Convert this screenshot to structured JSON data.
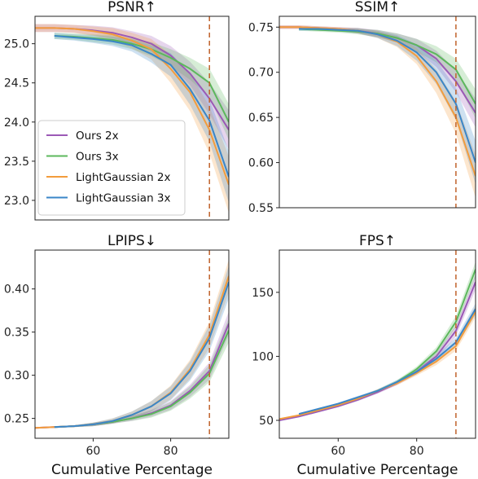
{
  "chart_data": [
    {
      "type": "line",
      "title": "PSNR↑",
      "xlabel": "",
      "ylabel": "",
      "xlim": [
        45,
        95
      ],
      "ylim": [
        22.75,
        25.35
      ],
      "yticks": [
        25.0,
        24.5,
        24.0,
        23.5,
        23.0
      ],
      "ytick_labels": [
        "25.0",
        "24.5",
        "24.0",
        "23.5",
        "23.0"
      ],
      "xticks": [],
      "vline": 90,
      "grid": false,
      "legend": "lower-left",
      "series": [
        {
          "name": "Ours 2x",
          "color": "#9b59b6",
          "x": [
            45,
            50,
            55,
            60,
            65,
            70,
            75,
            80,
            85,
            90,
            95
          ],
          "y": [
            25.2,
            25.2,
            25.19,
            25.17,
            25.14,
            25.08,
            25.0,
            24.85,
            24.62,
            24.3,
            23.9
          ],
          "band": [
            0.05,
            0.05,
            0.05,
            0.06,
            0.07,
            0.08,
            0.1,
            0.12,
            0.15,
            0.2,
            0.25
          ]
        },
        {
          "name": "Ours 3x",
          "color": "#5cb85c",
          "x": [
            50,
            55,
            60,
            65,
            70,
            75,
            80,
            85,
            90,
            95
          ],
          "y": [
            25.1,
            25.09,
            25.07,
            25.05,
            25.0,
            24.93,
            24.82,
            24.68,
            24.5,
            24.0
          ],
          "band": [
            0.04,
            0.04,
            0.05,
            0.06,
            0.07,
            0.09,
            0.11,
            0.14,
            0.18,
            0.23
          ]
        },
        {
          "name": "LightGaussian 2x",
          "color": "#f39c3c",
          "x": [
            45,
            50,
            55,
            60,
            65,
            70,
            75,
            80,
            85,
            90,
            95
          ],
          "y": [
            25.2,
            25.2,
            25.19,
            25.16,
            25.12,
            25.04,
            24.93,
            24.68,
            24.38,
            23.9,
            23.2
          ],
          "band": [
            0.05,
            0.05,
            0.05,
            0.06,
            0.08,
            0.1,
            0.13,
            0.18,
            0.24,
            0.3,
            0.36
          ]
        },
        {
          "name": "LightGaussian 3x",
          "color": "#3a86c8",
          "x": [
            50,
            55,
            60,
            65,
            70,
            75,
            80,
            85,
            90,
            95
          ],
          "y": [
            25.1,
            25.08,
            25.06,
            25.03,
            24.98,
            24.87,
            24.73,
            24.42,
            24.02,
            23.3
          ],
          "band": [
            0.04,
            0.04,
            0.05,
            0.06,
            0.08,
            0.11,
            0.15,
            0.2,
            0.27,
            0.33
          ]
        }
      ]
    },
    {
      "type": "line",
      "title": "SSIM↑",
      "xlabel": "",
      "ylabel": "",
      "xlim": [
        45,
        95
      ],
      "ylim": [
        0.55,
        0.762
      ],
      "yticks": [
        0.75,
        0.7,
        0.65,
        0.6,
        0.55
      ],
      "ytick_labels": [
        "0.75",
        "0.70",
        "0.65",
        "0.60",
        "0.55"
      ],
      "xticks": [],
      "vline": 90,
      "grid": false,
      "legend": "none",
      "series": [
        {
          "name": "Ours 2x",
          "color": "#9b59b6",
          "x": [
            45,
            50,
            55,
            60,
            65,
            70,
            75,
            80,
            85,
            90,
            95
          ],
          "y": [
            0.75,
            0.75,
            0.749,
            0.748,
            0.746,
            0.743,
            0.738,
            0.73,
            0.715,
            0.69,
            0.655
          ],
          "band": [
            0.002,
            0.002,
            0.002,
            0.002,
            0.003,
            0.004,
            0.005,
            0.007,
            0.009,
            0.012,
            0.016
          ]
        },
        {
          "name": "Ours 3x",
          "color": "#5cb85c",
          "x": [
            50,
            55,
            60,
            65,
            70,
            75,
            80,
            85,
            90,
            95
          ],
          "y": [
            0.748,
            0.747,
            0.746,
            0.745,
            0.743,
            0.738,
            0.73,
            0.72,
            0.703,
            0.665
          ],
          "band": [
            0.002,
            0.002,
            0.002,
            0.003,
            0.004,
            0.005,
            0.007,
            0.009,
            0.012,
            0.016
          ]
        },
        {
          "name": "LightGaussian 2x",
          "color": "#f39c3c",
          "x": [
            45,
            50,
            55,
            60,
            65,
            70,
            75,
            80,
            85,
            90,
            95
          ],
          "y": [
            0.75,
            0.75,
            0.749,
            0.748,
            0.746,
            0.742,
            0.734,
            0.718,
            0.69,
            0.65,
            0.585
          ],
          "band": [
            0.002,
            0.002,
            0.002,
            0.002,
            0.003,
            0.004,
            0.006,
            0.009,
            0.013,
            0.018,
            0.024
          ]
        },
        {
          "name": "LightGaussian 3x",
          "color": "#3a86c8",
          "x": [
            50,
            55,
            60,
            65,
            70,
            75,
            80,
            85,
            90,
            95
          ],
          "y": [
            0.748,
            0.748,
            0.747,
            0.746,
            0.742,
            0.735,
            0.722,
            0.7,
            0.665,
            0.6
          ],
          "band": [
            0.002,
            0.002,
            0.002,
            0.003,
            0.004,
            0.006,
            0.009,
            0.013,
            0.018,
            0.024
          ]
        }
      ]
    },
    {
      "type": "line",
      "title": "LPIPS↓",
      "xlabel": "Cumulative Percentage",
      "ylabel": "",
      "xlim": [
        45,
        95
      ],
      "ylim": [
        0.227,
        0.445
      ],
      "yticks": [
        0.4,
        0.35,
        0.3,
        0.25
      ],
      "ytick_labels": [
        "0.40",
        "0.35",
        "0.30",
        "0.25"
      ],
      "xticks": [
        60,
        80
      ],
      "vline": 90,
      "grid": false,
      "legend": "none",
      "series": [
        {
          "name": "Ours 2x",
          "color": "#9b59b6",
          "x": [
            45,
            50,
            55,
            60,
            65,
            70,
            75,
            80,
            85,
            90,
            95
          ],
          "y": [
            0.239,
            0.24,
            0.241,
            0.243,
            0.246,
            0.25,
            0.256,
            0.265,
            0.282,
            0.305,
            0.36
          ],
          "band": [
            0.001,
            0.001,
            0.001,
            0.002,
            0.002,
            0.003,
            0.004,
            0.005,
            0.007,
            0.01,
            0.014
          ]
        },
        {
          "name": "Ours 3x",
          "color": "#5cb85c",
          "x": [
            50,
            55,
            60,
            65,
            70,
            75,
            80,
            85,
            90,
            95
          ],
          "y": [
            0.24,
            0.241,
            0.243,
            0.246,
            0.25,
            0.255,
            0.264,
            0.28,
            0.302,
            0.352
          ],
          "band": [
            0.001,
            0.001,
            0.002,
            0.002,
            0.003,
            0.004,
            0.005,
            0.007,
            0.01,
            0.014
          ]
        },
        {
          "name": "LightGaussian 2x",
          "color": "#f39c3c",
          "x": [
            45,
            50,
            55,
            60,
            65,
            70,
            75,
            80,
            85,
            90,
            95
          ],
          "y": [
            0.239,
            0.24,
            0.241,
            0.243,
            0.247,
            0.254,
            0.264,
            0.28,
            0.307,
            0.347,
            0.415
          ],
          "band": [
            0.001,
            0.001,
            0.001,
            0.002,
            0.003,
            0.004,
            0.006,
            0.008,
            0.011,
            0.015,
            0.019
          ]
        },
        {
          "name": "LightGaussian 3x",
          "color": "#3a86c8",
          "x": [
            50,
            55,
            60,
            65,
            70,
            75,
            80,
            85,
            90,
            95
          ],
          "y": [
            0.24,
            0.241,
            0.243,
            0.247,
            0.254,
            0.264,
            0.279,
            0.305,
            0.343,
            0.408
          ],
          "band": [
            0.001,
            0.001,
            0.002,
            0.003,
            0.004,
            0.006,
            0.008,
            0.011,
            0.015,
            0.019
          ]
        }
      ]
    },
    {
      "type": "line",
      "title": "FPS↑",
      "xlabel": "Cumulative Percentage",
      "ylabel": "",
      "xlim": [
        45,
        95
      ],
      "ylim": [
        36,
        183
      ],
      "yticks": [
        150,
        100,
        50
      ],
      "ytick_labels": [
        "150",
        "100",
        "50"
      ],
      "xticks": [
        60,
        80
      ],
      "vline": 90,
      "grid": false,
      "legend": "none",
      "series": [
        {
          "name": "Ours 2x",
          "color": "#9b59b6",
          "x": [
            45,
            50,
            55,
            60,
            65,
            70,
            75,
            80,
            85,
            90,
            95
          ],
          "y": [
            50,
            53,
            57,
            61,
            66,
            72,
            79,
            88,
            100,
            120,
            158
          ],
          "band": [
            0.5,
            0.6,
            0.7,
            0.8,
            1,
            1.2,
            1.5,
            2,
            3,
            4.5,
            6
          ]
        },
        {
          "name": "Ours 3x",
          "color": "#5cb85c",
          "x": [
            50,
            55,
            60,
            65,
            70,
            75,
            80,
            85,
            90,
            95
          ],
          "y": [
            54,
            58,
            62,
            67,
            73,
            80,
            90,
            104,
            127,
            168
          ],
          "band": [
            0.6,
            0.7,
            0.8,
            1,
            1.2,
            1.5,
            2,
            3,
            4.5,
            6
          ]
        },
        {
          "name": "LightGaussian 2x",
          "color": "#f39c3c",
          "x": [
            45,
            50,
            55,
            60,
            65,
            70,
            75,
            80,
            85,
            90,
            95
          ],
          "y": [
            51,
            54,
            58,
            62,
            67,
            73,
            79,
            87,
            96,
            108,
            135
          ],
          "band": [
            0.5,
            0.6,
            0.7,
            0.8,
            1,
            1.2,
            1.5,
            2,
            2.8,
            3.5,
            4.5
          ]
        },
        {
          "name": "LightGaussian 3x",
          "color": "#3a86c8",
          "x": [
            50,
            55,
            60,
            65,
            70,
            75,
            80,
            85,
            90,
            95
          ],
          "y": [
            55,
            59,
            63,
            68,
            73,
            80,
            88,
            98,
            111,
            137
          ],
          "band": [
            0.6,
            0.7,
            0.8,
            1,
            1.2,
            1.5,
            2,
            2.8,
            3.5,
            4.5
          ]
        }
      ]
    }
  ],
  "colors": {
    "vline": "#c0622b",
    "axis": "#222222"
  }
}
